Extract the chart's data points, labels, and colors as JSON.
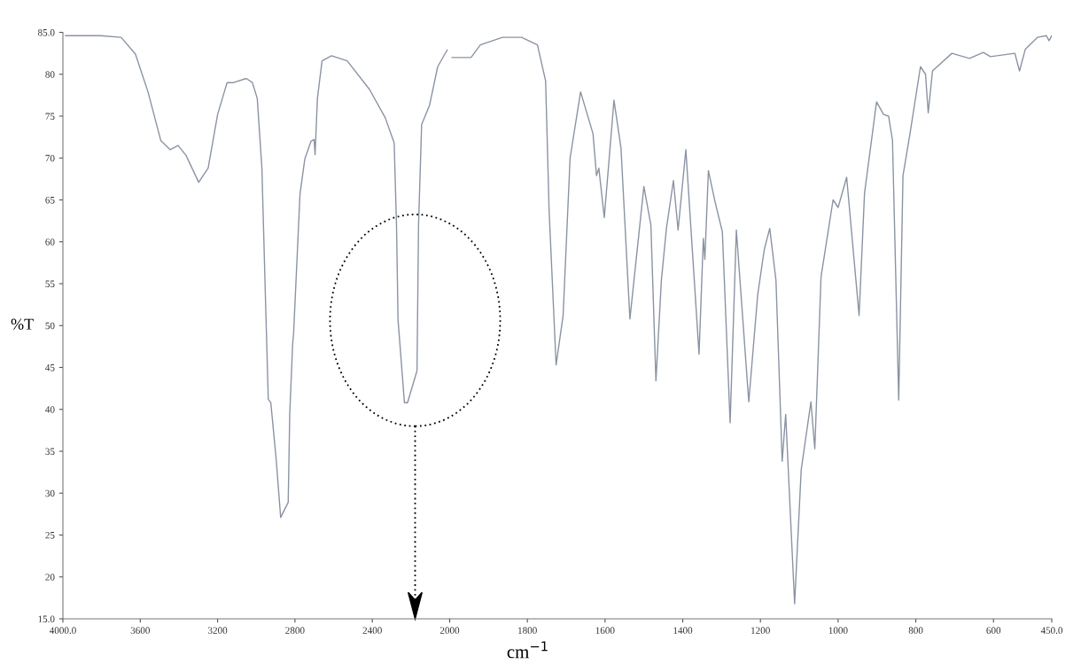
{
  "chart_data": [
    {
      "type": "line",
      "ylabel": "%T",
      "x": [
        3986,
        3805,
        3699,
        3625,
        3560,
        3494,
        3446,
        3404,
        3363,
        3298,
        3249,
        3200,
        3151,
        3118,
        3052,
        3020,
        2995,
        2971,
        2954,
        2938,
        2925,
        2897,
        2874,
        2835,
        2827,
        2812,
        2807,
        2774,
        2749,
        2717,
        2701,
        2696,
        2684,
        2660,
        2611,
        2530,
        2415,
        2333,
        2287,
        2275,
        2267,
        2234,
        2218,
        2169,
        2161,
        2145,
        2104,
        2062,
        2013
      ],
      "series": [
        {
          "color": "#8a93a3",
          "values": [
            84.6,
            84.6,
            84.4,
            82.4,
            77.9,
            72.1,
            71.0,
            71.5,
            70.3,
            67.1,
            68.8,
            75.2,
            79.0,
            79.0,
            79.5,
            79.0,
            77.1,
            68.8,
            54.4,
            41.2,
            40.8,
            34.0,
            27.1,
            28.9,
            39.5,
            47.8,
            49.1,
            65.7,
            69.9,
            72.0,
            72.2,
            70.4,
            77.1,
            81.6,
            82.2,
            81.6,
            78.2,
            74.8,
            71.8,
            62.0,
            50.7,
            40.8,
            40.8,
            44.6,
            62.0,
            74.0,
            76.3,
            80.9,
            82.9
          ]
        }
      ],
      "xlim": [
        4000,
        2000
      ],
      "xticks": [
        {
          "value": 4000,
          "label": "4000.0"
        },
        3600,
        3200,
        2800,
        2400,
        {
          "value": 2000,
          "label": null
        }
      ],
      "ylim": [
        15,
        85
      ],
      "yticks": [
        {
          "value": 15,
          "label": "15.0"
        },
        20,
        25,
        30,
        35,
        40,
        45,
        50,
        55,
        60,
        65,
        70,
        75,
        80,
        {
          "value": 85,
          "label": "85.0"
        }
      ],
      "grid": false,
      "legend": false,
      "marker": "none",
      "line_style": "solid"
    },
    {
      "type": "line",
      "xlabel": "cm$^{−1}$",
      "x": [
        1994,
        1945,
        1921,
        1864,
        1815,
        1774,
        1753,
        1744,
        1726,
        1708,
        1690,
        1663,
        1631,
        1622,
        1616,
        1602,
        1577,
        1559,
        1536,
        1500,
        1482,
        1469,
        1455,
        1442,
        1424,
        1412,
        1392,
        1358,
        1347,
        1343,
        1334,
        1316,
        1298,
        1278,
        1262,
        1230,
        1207,
        1190,
        1176,
        1160,
        1144,
        1135,
        1112,
        1095,
        1070,
        1060,
        1044,
        1013,
        1000,
        978,
        946,
        932,
        901,
        883,
        870,
        860,
        844,
        833,
        815,
        788,
        775,
        768,
        757,
        707,
        662,
        626,
        608,
        545,
        533,
        518,
        487,
        464,
        457,
        450
      ],
      "series": [
        {
          "color": "#8a93a3",
          "values": [
            82.0,
            82.0,
            83.5,
            84.4,
            84.4,
            83.5,
            79.2,
            63.7,
            45.3,
            51.2,
            70.0,
            77.9,
            72.9,
            67.9,
            68.8,
            62.9,
            76.9,
            71.2,
            50.8,
            66.6,
            62.0,
            43.4,
            55.4,
            61.6,
            67.3,
            61.4,
            71.0,
            46.6,
            60.4,
            57.9,
            68.5,
            64.6,
            61.2,
            38.4,
            61.4,
            40.9,
            53.7,
            59.1,
            61.6,
            55.4,
            33.8,
            39.4,
            16.8,
            32.8,
            40.9,
            35.3,
            55.8,
            65.0,
            64.1,
            67.7,
            51.2,
            65.8,
            76.7,
            75.2,
            75.0,
            72.1,
            41.1,
            67.9,
            72.9,
            80.9,
            80.0,
            75.4,
            80.4,
            82.5,
            81.9,
            82.6,
            82.1,
            82.5,
            80.4,
            83.0,
            84.4,
            84.6,
            84.0,
            84.6
          ]
        }
      ],
      "xlim": [
        2000,
        450
      ],
      "xticks": [
        2000,
        1800,
        1600,
        1400,
        1200,
        1000,
        800,
        600,
        {
          "value": 450,
          "label": "450.0"
        }
      ],
      "ylim": [
        15,
        85
      ],
      "tick_labels": "x",
      "grid": false,
      "legend": false,
      "marker": "none",
      "line_style": "solid"
    }
  ]
}
